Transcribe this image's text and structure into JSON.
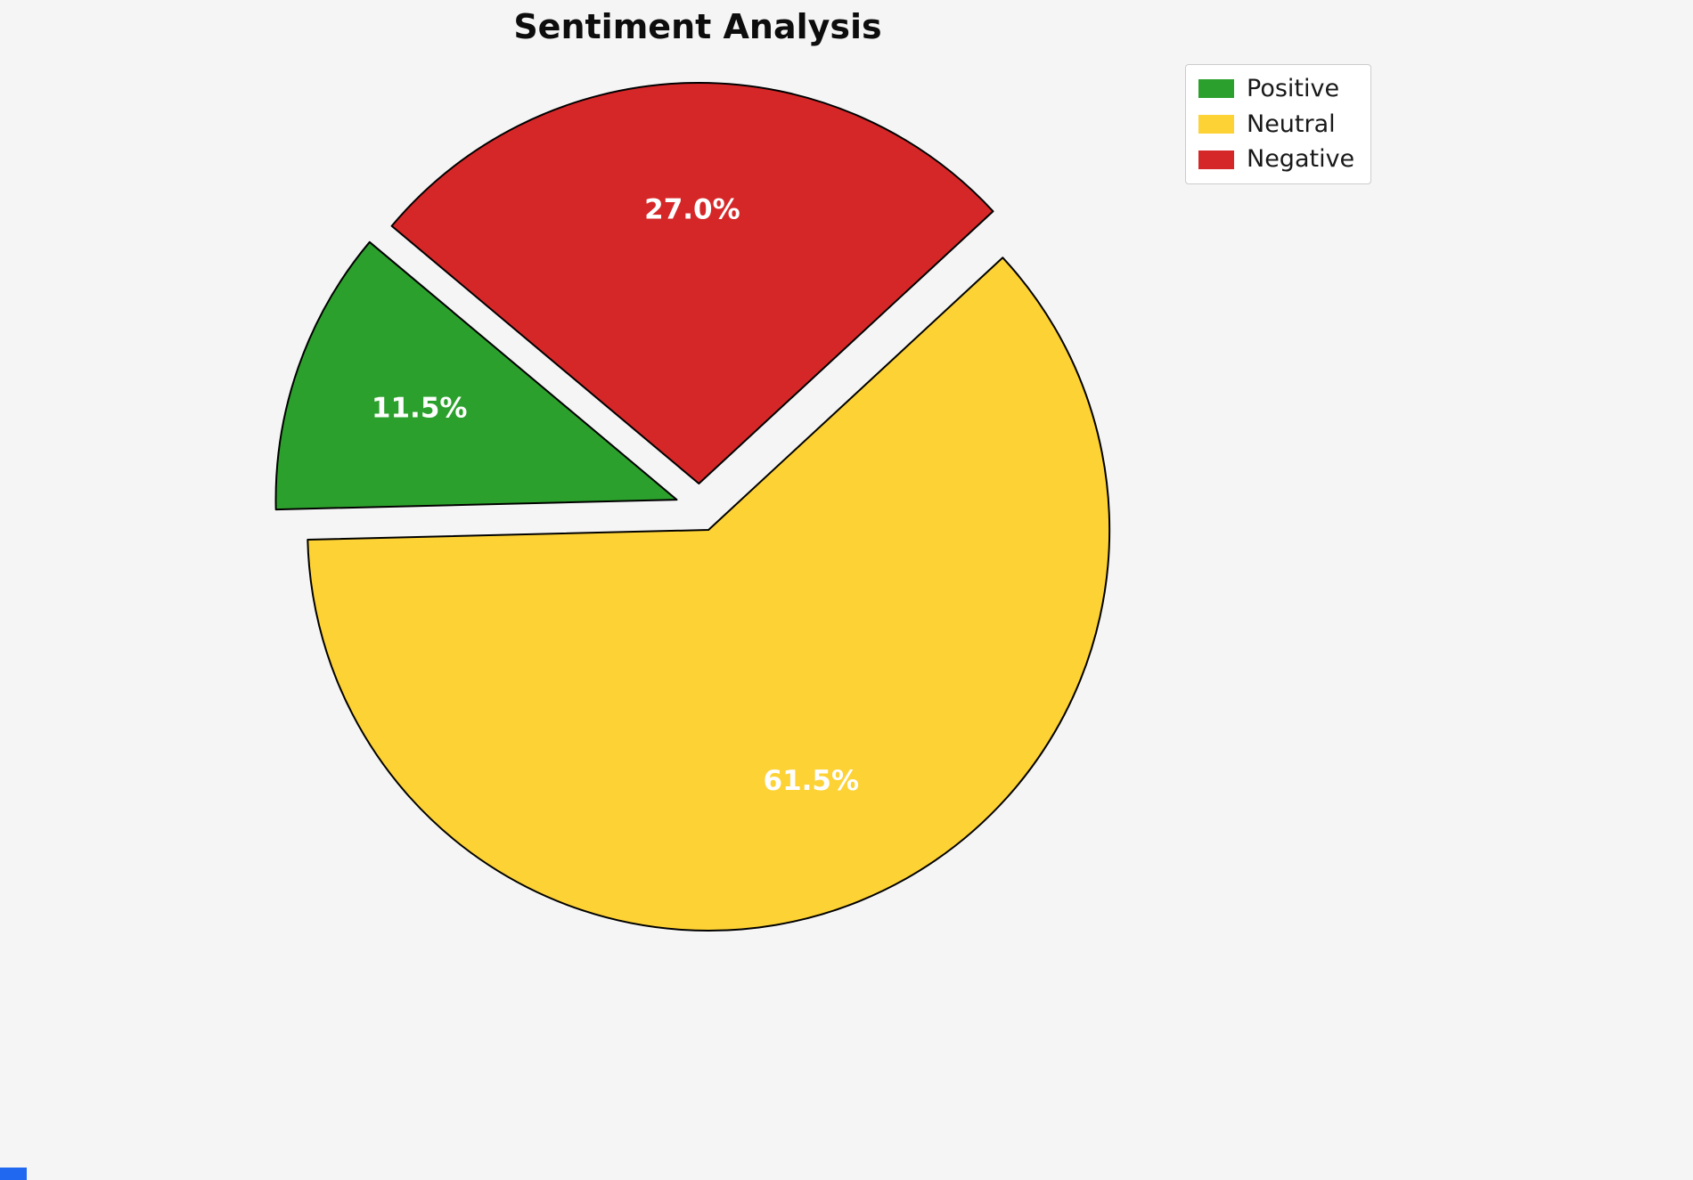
{
  "page": {
    "background": "#f5f5f5"
  },
  "chart_data": {
    "type": "pie",
    "title": "Sentiment Analysis",
    "slices": [
      {
        "label": "Positive",
        "value": 11.5,
        "pct_label": "11.5%",
        "color": "#2ca02c"
      },
      {
        "label": "Neutral",
        "value": 61.5,
        "pct_label": "61.5%",
        "color": "#fdd235"
      },
      {
        "label": "Negative",
        "value": 27.0,
        "pct_label": "27.0%",
        "color": "#d62728"
      }
    ],
    "startangle": 140,
    "counterclock": true,
    "explode": 0.06,
    "pctdistance": 0.68,
    "label_color": "#ffffff",
    "edge_color": "#000000",
    "legend": {
      "position": "upper right",
      "labels": [
        "Positive",
        "Neutral",
        "Negative"
      ]
    }
  }
}
